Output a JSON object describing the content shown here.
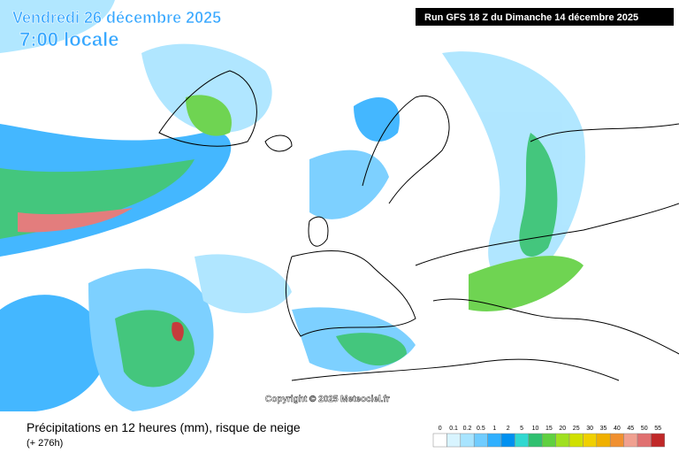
{
  "header": {
    "date": "Vendredi 26 décembre 2025",
    "time": "7:00 locale"
  },
  "run": "Run GFS 18 Z du Dimanche 14 décembre 2025",
  "copyright": "Copyright © 2025 Meteociel.fr",
  "caption": {
    "title": "Précipitations en 12 heures (mm), risque de neige",
    "lead": "(+ 276h)"
  },
  "legend": {
    "ticks": [
      "0",
      "0.1",
      "0.2",
      "0.5",
      "1",
      "2",
      "5",
      "10",
      "15",
      "20",
      "25",
      "30",
      "35",
      "40",
      "45",
      "50",
      "55"
    ],
    "colors": [
      "#ffffff",
      "#d8f4ff",
      "#a8e4ff",
      "#70ccff",
      "#30b0ff",
      "#0090f0",
      "#30d8d0",
      "#30c070",
      "#60d040",
      "#a0e020",
      "#d0e000",
      "#f0d000",
      "#f0b000",
      "#f09030",
      "#f0a090",
      "#e07070",
      "#c02828"
    ]
  }
}
